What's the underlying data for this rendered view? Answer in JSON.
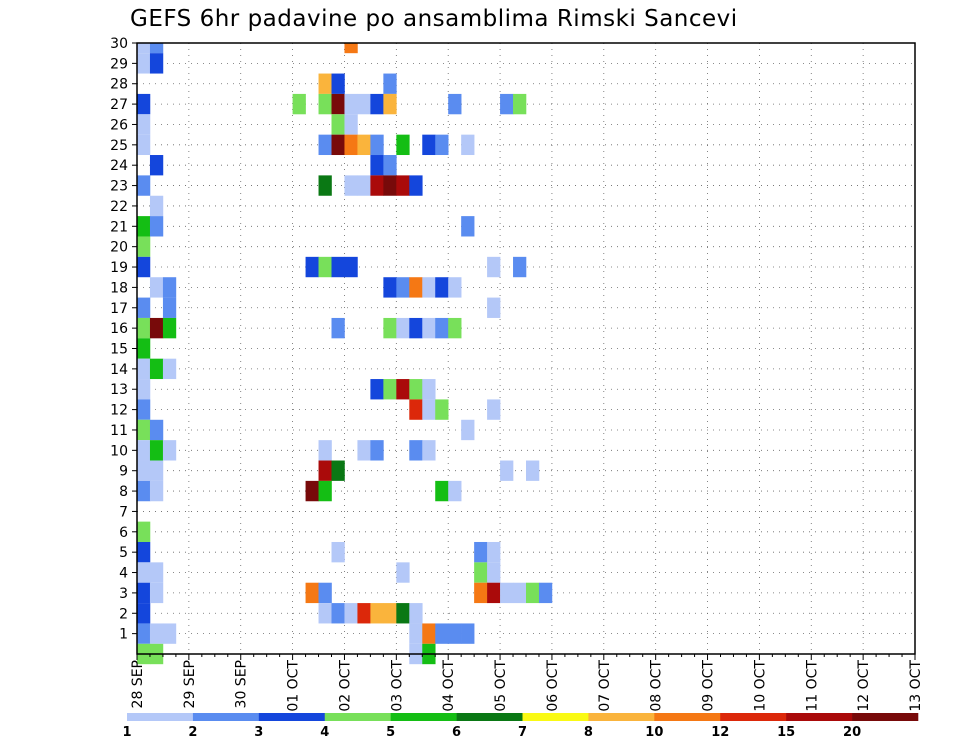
{
  "chart_data": {
    "type": "heatmap",
    "title": "GEFS 6hr padavine po ansamblima Rimski Sancevi",
    "x_tick_labels": [
      "28 SEP",
      "29 SEP",
      "30 SEP",
      "01 OCT",
      "02 OCT",
      "03 OCT",
      "04 OCT",
      "05 OCT",
      "06 OCT",
      "07 OCT",
      "08 OCT",
      "09 OCT",
      "10 OCT",
      "11 OCT",
      "12 OCT",
      "13 OCT"
    ],
    "x_step": "6hr",
    "y_tick_labels": [
      "1",
      "2",
      "3",
      "4",
      "5",
      "6",
      "7",
      "8",
      "9",
      "10",
      "11",
      "12",
      "13",
      "14",
      "15",
      "16",
      "17",
      "18",
      "19",
      "20",
      "21",
      "22",
      "23",
      "24",
      "25",
      "26",
      "27",
      "28",
      "29",
      "30"
    ],
    "y_range": [
      0,
      30
    ],
    "grid": true,
    "color_scale": {
      "labels": [
        "1",
        "2",
        "3",
        "4",
        "5",
        "6",
        "7",
        "8",
        "10",
        "12",
        "15",
        "20"
      ],
      "colors": [
        "#b4c8f8",
        "#5a8cf0",
        "#1446dc",
        "#78e05a",
        "#14be14",
        "#0a7814",
        "#fafa14",
        "#fab43c",
        "#f57814",
        "#dc280a",
        "#aa0a0a",
        "#780a0a"
      ]
    },
    "cells": [
      [
        30,
        0,
        1
      ],
      [
        30,
        1,
        2
      ],
      [
        30,
        16,
        10
      ],
      [
        29,
        0,
        1
      ],
      [
        29,
        1,
        3
      ],
      [
        28,
        14,
        8
      ],
      [
        28,
        15,
        3
      ],
      [
        28,
        19,
        2
      ],
      [
        27,
        0,
        3
      ],
      [
        27,
        12,
        4
      ],
      [
        27,
        14,
        4
      ],
      [
        27,
        15,
        20
      ],
      [
        27,
        16,
        1
      ],
      [
        27,
        17,
        1
      ],
      [
        27,
        18,
        3
      ],
      [
        27,
        19,
        8
      ],
      [
        27,
        24,
        2
      ],
      [
        27,
        28,
        2
      ],
      [
        27,
        29,
        4
      ],
      [
        26,
        0,
        1
      ],
      [
        26,
        15,
        4
      ],
      [
        26,
        16,
        1
      ],
      [
        25,
        0,
        1
      ],
      [
        25,
        14,
        2
      ],
      [
        25,
        15,
        20
      ],
      [
        25,
        16,
        10
      ],
      [
        25,
        17,
        8
      ],
      [
        25,
        18,
        2
      ],
      [
        25,
        20,
        5
      ],
      [
        25,
        22,
        3
      ],
      [
        25,
        23,
        2
      ],
      [
        25,
        25,
        1
      ],
      [
        24,
        1,
        3
      ],
      [
        24,
        18,
        3
      ],
      [
        24,
        19,
        2
      ],
      [
        23,
        0,
        2
      ],
      [
        23,
        14,
        6
      ],
      [
        23,
        16,
        1
      ],
      [
        23,
        17,
        1
      ],
      [
        23,
        18,
        15
      ],
      [
        23,
        19,
        20
      ],
      [
        23,
        20,
        15
      ],
      [
        23,
        21,
        3
      ],
      [
        22,
        1,
        1
      ],
      [
        21,
        0,
        5
      ],
      [
        21,
        1,
        2
      ],
      [
        21,
        25,
        2
      ],
      [
        20,
        0,
        4
      ],
      [
        19,
        0,
        3
      ],
      [
        19,
        13,
        3
      ],
      [
        19,
        14,
        4
      ],
      [
        19,
        15,
        3
      ],
      [
        19,
        16,
        3
      ],
      [
        19,
        27,
        1
      ],
      [
        19,
        29,
        2
      ],
      [
        18,
        1,
        1
      ],
      [
        18,
        2,
        2
      ],
      [
        18,
        19,
        3
      ],
      [
        18,
        20,
        2
      ],
      [
        18,
        21,
        10
      ],
      [
        18,
        22,
        1
      ],
      [
        18,
        23,
        3
      ],
      [
        18,
        24,
        1
      ],
      [
        17,
        0,
        2
      ],
      [
        17,
        2,
        2
      ],
      [
        17,
        27,
        1
      ],
      [
        16,
        0,
        4
      ],
      [
        16,
        1,
        20
      ],
      [
        16,
        2,
        5
      ],
      [
        16,
        15,
        2
      ],
      [
        16,
        19,
        4
      ],
      [
        16,
        20,
        1
      ],
      [
        16,
        21,
        3
      ],
      [
        16,
        22,
        1
      ],
      [
        16,
        23,
        2
      ],
      [
        16,
        24,
        4
      ],
      [
        15,
        0,
        5
      ],
      [
        14,
        0,
        1
      ],
      [
        14,
        1,
        5
      ],
      [
        14,
        2,
        1
      ],
      [
        13,
        0,
        1
      ],
      [
        13,
        18,
        3
      ],
      [
        13,
        19,
        4
      ],
      [
        13,
        20,
        15
      ],
      [
        13,
        21,
        4
      ],
      [
        13,
        22,
        1
      ],
      [
        12,
        0,
        2
      ],
      [
        12,
        21,
        12
      ],
      [
        12,
        22,
        1
      ],
      [
        12,
        23,
        4
      ],
      [
        12,
        27,
        1
      ],
      [
        11,
        0,
        4
      ],
      [
        11,
        1,
        2
      ],
      [
        11,
        25,
        1
      ],
      [
        10,
        0,
        1
      ],
      [
        10,
        1,
        5
      ],
      [
        10,
        2,
        1
      ],
      [
        10,
        14,
        1
      ],
      [
        10,
        17,
        1
      ],
      [
        10,
        18,
        2
      ],
      [
        10,
        21,
        2
      ],
      [
        10,
        22,
        1
      ],
      [
        9,
        0,
        1
      ],
      [
        9,
        1,
        1
      ],
      [
        9,
        14,
        15
      ],
      [
        9,
        15,
        6
      ],
      [
        9,
        28,
        1
      ],
      [
        9,
        30,
        1
      ],
      [
        8,
        0,
        2
      ],
      [
        8,
        1,
        1
      ],
      [
        8,
        13,
        20
      ],
      [
        8,
        14,
        5
      ],
      [
        8,
        23,
        5
      ],
      [
        8,
        24,
        1
      ],
      [
        6,
        0,
        4
      ],
      [
        5,
        0,
        3
      ],
      [
        5,
        15,
        1
      ],
      [
        5,
        26,
        2
      ],
      [
        5,
        27,
        1
      ],
      [
        4,
        0,
        1
      ],
      [
        4,
        1,
        1
      ],
      [
        4,
        20,
        1
      ],
      [
        4,
        26,
        4
      ],
      [
        4,
        27,
        1
      ],
      [
        3,
        0,
        3
      ],
      [
        3,
        1,
        1
      ],
      [
        3,
        13,
        10
      ],
      [
        3,
        14,
        2
      ],
      [
        3,
        26,
        10
      ],
      [
        3,
        27,
        15
      ],
      [
        3,
        28,
        1
      ],
      [
        3,
        29,
        1
      ],
      [
        3,
        30,
        4
      ],
      [
        3,
        31,
        2
      ],
      [
        2,
        0,
        3
      ],
      [
        2,
        14,
        1
      ],
      [
        2,
        15,
        2
      ],
      [
        2,
        16,
        1
      ],
      [
        2,
        17,
        12
      ],
      [
        2,
        18,
        8
      ],
      [
        2,
        19,
        8
      ],
      [
        2,
        20,
        6
      ],
      [
        2,
        21,
        1
      ],
      [
        1,
        0,
        2
      ],
      [
        1,
        1,
        1
      ],
      [
        1,
        2,
        1
      ],
      [
        1,
        21,
        1
      ],
      [
        1,
        22,
        10
      ],
      [
        1,
        23,
        2
      ],
      [
        1,
        24,
        2
      ],
      [
        1,
        25,
        2
      ],
      [
        0,
        0,
        4
      ],
      [
        0,
        1,
        4
      ],
      [
        0,
        21,
        1
      ],
      [
        0,
        22,
        5
      ]
    ]
  }
}
